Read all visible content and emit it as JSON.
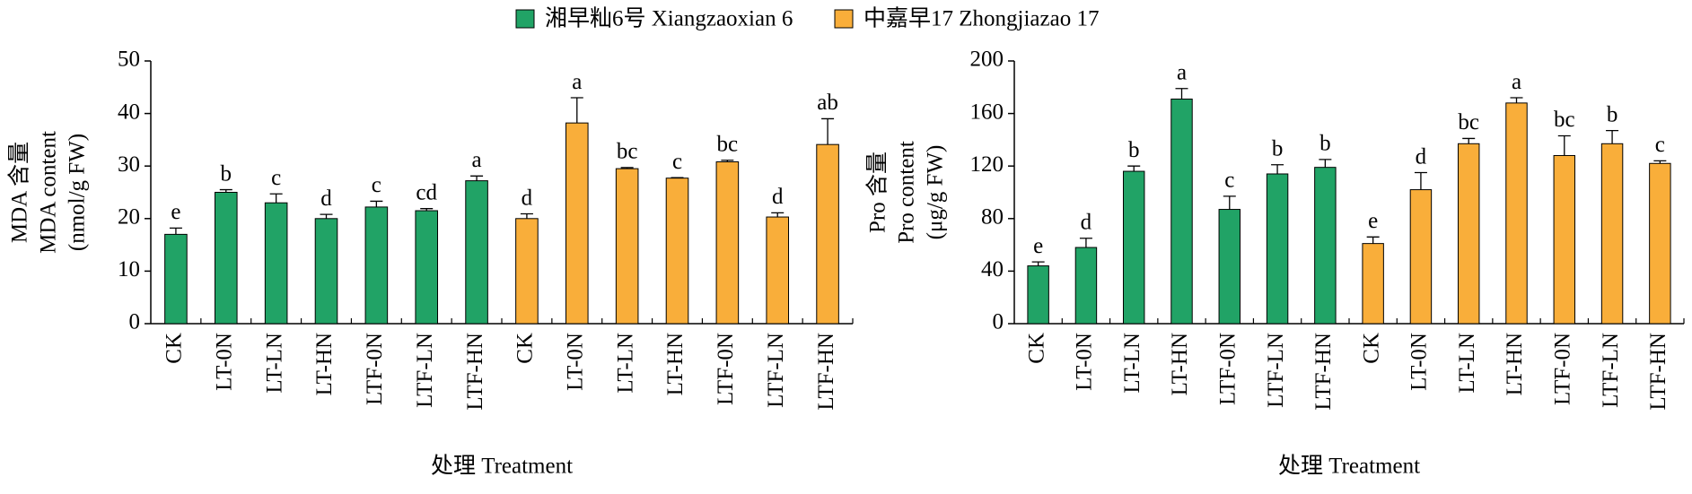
{
  "legend": {
    "position": "top",
    "items": [
      {
        "name": "湘早籼6号 Xiangzaoxian 6",
        "color": "#21a366"
      },
      {
        "name": "中嘉早17 Zhongjiazao 17",
        "color": "#f9ae3a"
      }
    ]
  },
  "chart_data": [
    {
      "type": "bar",
      "ylabel": [
        "MDA 含量",
        "MDA content",
        "(nmol/g FW)"
      ],
      "xlabel": "处理 Treatment",
      "categories": [
        "CK",
        "LT-0N",
        "LT-LN",
        "LT-HN",
        "LTF-0N",
        "LTF-LN",
        "LTF-HN",
        "CK",
        "LT-0N",
        "LT-LN",
        "LT-HN",
        "LTF-0N",
        "LTF-LN",
        "LTF-HN"
      ],
      "values": [
        17,
        25,
        23,
        20,
        22.2,
        21.5,
        27.2,
        20,
        38.2,
        29.5,
        27.7,
        30.8,
        20.3,
        34.1
      ],
      "errors": [
        1.2,
        0.5,
        1.7,
        0.8,
        1.1,
        0.4,
        0.9,
        0.9,
        4.8,
        0.2,
        0.1,
        0.3,
        0.8,
        4.9
      ],
      "annotations": [
        "e",
        "b",
        "c",
        "d",
        "c",
        "cd",
        "a",
        "d",
        "a",
        "bc",
        "c",
        "bc",
        "d",
        "ab"
      ],
      "colors": [
        "#21a366",
        "#21a366",
        "#21a366",
        "#21a366",
        "#21a366",
        "#21a366",
        "#21a366",
        "#f9ae3a",
        "#f9ae3a",
        "#f9ae3a",
        "#f9ae3a",
        "#f9ae3a",
        "#f9ae3a",
        "#f9ae3a"
      ],
      "ylim": [
        0,
        50
      ],
      "yticks": [
        0,
        10,
        20,
        30,
        40,
        50
      ]
    },
    {
      "type": "bar",
      "ylabel": [
        "Pro 含量",
        "Pro content",
        "(μg/g FW)"
      ],
      "xlabel": "处理 Treatment",
      "categories": [
        "CK",
        "LT-0N",
        "LT-LN",
        "LT-HN",
        "LTF-0N",
        "LTF-LN",
        "LTF-HN",
        "CK",
        "LT-0N",
        "LT-LN",
        "LT-HN",
        "LTF-0N",
        "LTF-LN",
        "LTF-HN"
      ],
      "values": [
        44,
        58,
        116,
        171,
        87,
        114,
        119,
        61,
        102,
        137,
        168,
        128,
        137,
        122
      ],
      "errors": [
        3,
        7,
        4,
        8,
        10,
        7,
        6,
        5,
        13,
        4,
        4,
        15,
        10,
        2
      ],
      "annotations": [
        "e",
        "d",
        "b",
        "a",
        "c",
        "b",
        "b",
        "e",
        "d",
        "bc",
        "a",
        "bc",
        "b",
        "c"
      ],
      "colors": [
        "#21a366",
        "#21a366",
        "#21a366",
        "#21a366",
        "#21a366",
        "#21a366",
        "#21a366",
        "#f9ae3a",
        "#f9ae3a",
        "#f9ae3a",
        "#f9ae3a",
        "#f9ae3a",
        "#f9ae3a",
        "#f9ae3a"
      ],
      "ylim": [
        0,
        200
      ],
      "yticks": [
        0,
        40,
        80,
        120,
        160,
        200
      ]
    }
  ]
}
